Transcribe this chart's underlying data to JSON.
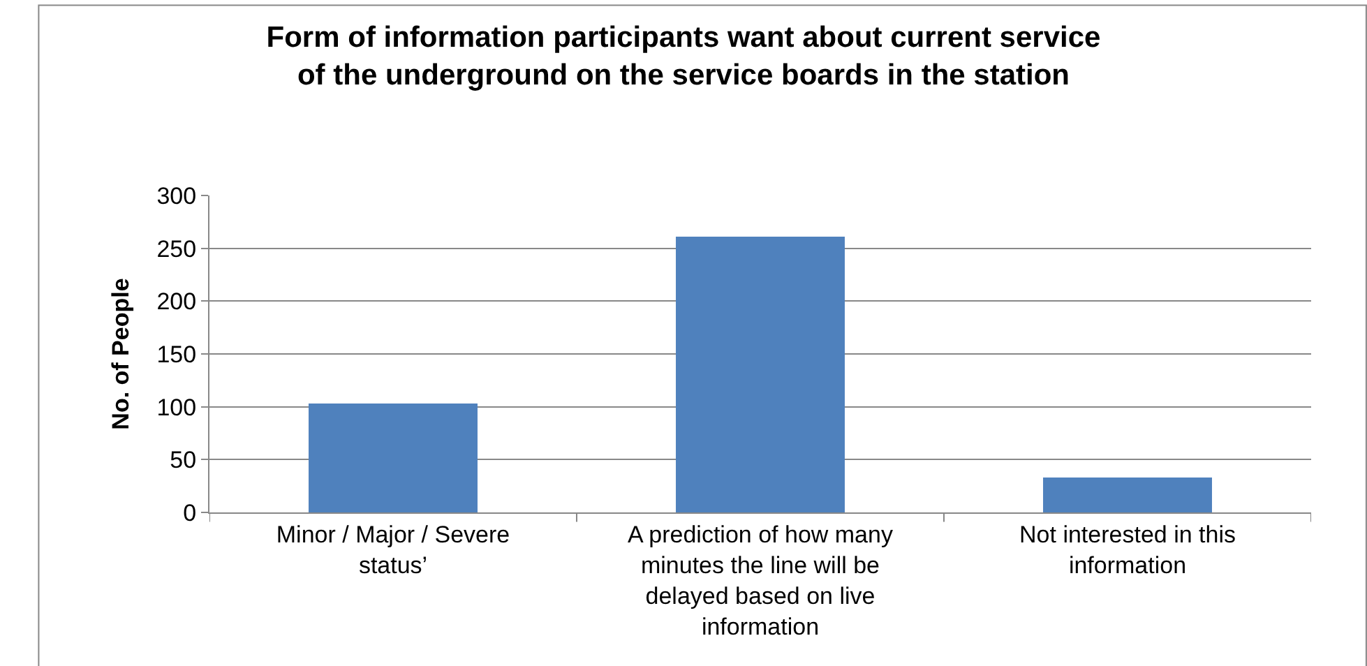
{
  "chart_data": {
    "type": "bar",
    "title": "Form of information participants want about current service of the underground on the service boards in the station",
    "ylabel": "No. of People",
    "categories": [
      "Minor / Major / Severe status’",
      "A prediction of how many minutes the line will be delayed based on live information",
      "Not interested in this information"
    ],
    "values": [
      103,
      261,
      33
    ],
    "color": "#4f81bd",
    "ylim": [
      0,
      300
    ],
    "yticks": [
      0,
      50,
      100,
      150,
      200,
      250,
      300
    ],
    "grid": "y",
    "legend": false
  }
}
